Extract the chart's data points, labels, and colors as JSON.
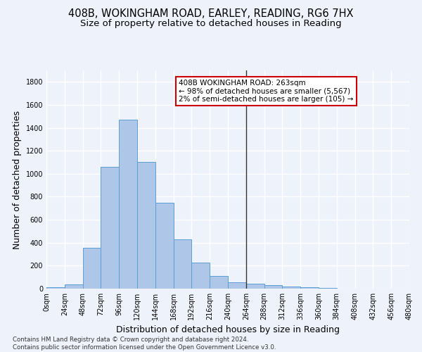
{
  "title_line1": "408B, WOKINGHAM ROAD, EARLEY, READING, RG6 7HX",
  "title_line2": "Size of property relative to detached houses in Reading",
  "xlabel": "Distribution of detached houses by size in Reading",
  "ylabel": "Number of detached properties",
  "footnote": "Contains HM Land Registry data © Crown copyright and database right 2024.\nContains public sector information licensed under the Open Government Licence v3.0.",
  "bar_edges": [
    0,
    24,
    48,
    72,
    96,
    120,
    144,
    168,
    192,
    216,
    240,
    264,
    288,
    312,
    336,
    360,
    384,
    408,
    432,
    456,
    480
  ],
  "bar_values": [
    10,
    35,
    355,
    1060,
    1470,
    1105,
    745,
    430,
    225,
    110,
    55,
    45,
    30,
    20,
    15,
    5,
    3,
    2,
    1,
    1
  ],
  "bar_color": "#aec6e8",
  "bar_edge_color": "#5a9fd4",
  "vline_x": 264,
  "vline_color": "#333333",
  "annotation_text_line1": "408B WOKINGHAM ROAD: 263sqm",
  "annotation_text_line2": "← 98% of detached houses are smaller (5,567)",
  "annotation_text_line3": "2% of semi-detached houses are larger (105) →",
  "annotation_box_color": "#cc0000",
  "annotation_text_color": "#000000",
  "ylim": [
    0,
    1900
  ],
  "yticks": [
    0,
    200,
    400,
    600,
    800,
    1000,
    1200,
    1400,
    1600,
    1800
  ],
  "background_color": "#eef2fb",
  "grid_color": "#ffffff",
  "title_fontsize": 10.5,
  "subtitle_fontsize": 9.5,
  "axis_label_fontsize": 9,
  "tick_fontsize": 7,
  "annotation_fontsize": 7.5,
  "footnote_fontsize": 6.2
}
